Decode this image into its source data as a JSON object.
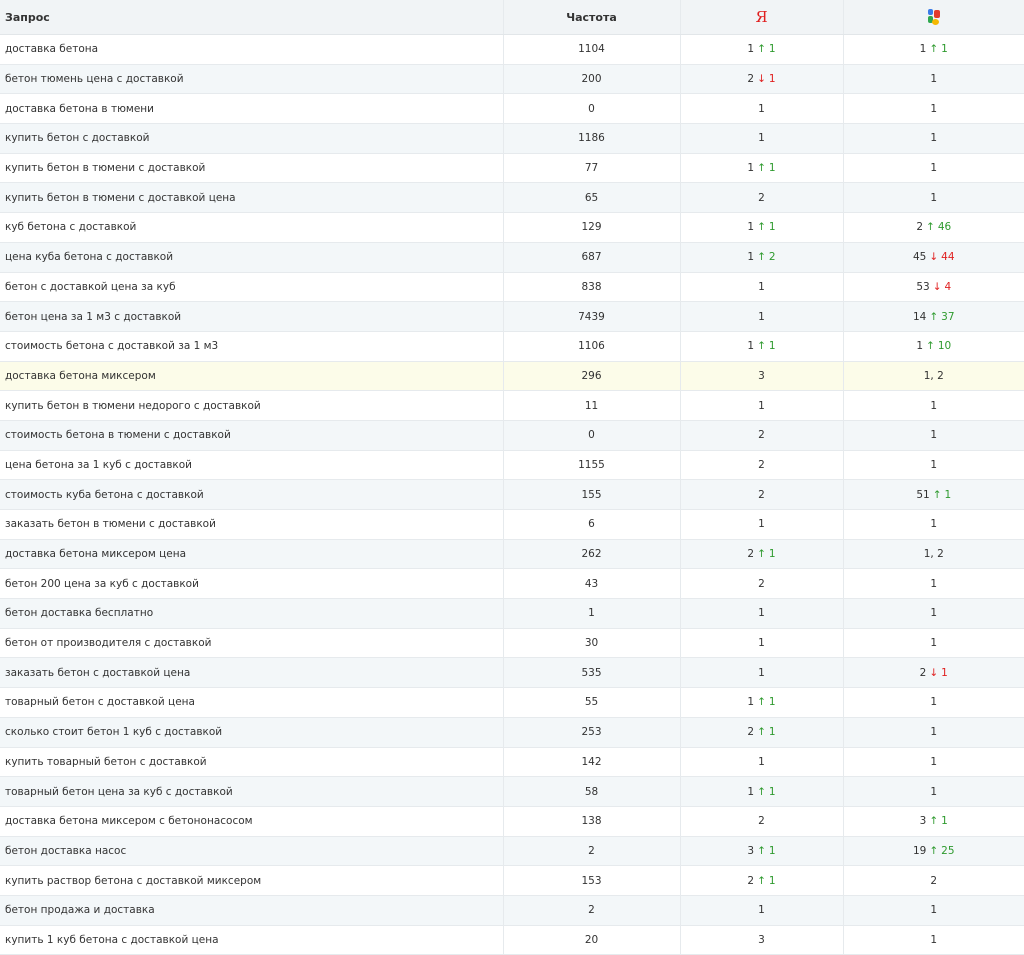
{
  "header": {
    "query": "Запрос",
    "freq": "Частота",
    "yandex": "Я",
    "google_icon": "google-logo-icon"
  },
  "colors": {
    "up": "#2e9a2e",
    "down": "#e02020",
    "highlight": "#fcfce9"
  },
  "rows": [
    {
      "q": "доставка бетона",
      "f": "1104",
      "y": {
        "p": "1",
        "dir": "up",
        "d": "1"
      },
      "g": {
        "p": "1",
        "dir": "up",
        "d": "1"
      }
    },
    {
      "q": "бетон тюмень цена с доставкой",
      "f": "200",
      "y": {
        "p": "2",
        "dir": "down",
        "d": "1"
      },
      "g": {
        "p": "1"
      }
    },
    {
      "q": "доставка бетона в тюмени",
      "f": "0",
      "y": {
        "p": "1"
      },
      "g": {
        "p": "1"
      }
    },
    {
      "q": "купить бетон с доставкой",
      "f": "1186",
      "y": {
        "p": "1"
      },
      "g": {
        "p": "1"
      }
    },
    {
      "q": "купить бетон в тюмени с доставкой",
      "f": "77",
      "y": {
        "p": "1",
        "dir": "up",
        "d": "1"
      },
      "g": {
        "p": "1"
      }
    },
    {
      "q": "купить бетон в тюмени с доставкой цена",
      "f": "65",
      "y": {
        "p": "2"
      },
      "g": {
        "p": "1"
      }
    },
    {
      "q": "куб бетона с доставкой",
      "f": "129",
      "y": {
        "p": "1",
        "dir": "up",
        "d": "1"
      },
      "g": {
        "p": "2",
        "dir": "up",
        "d": "46"
      }
    },
    {
      "q": "цена куба бетона с доставкой",
      "f": "687",
      "y": {
        "p": "1",
        "dir": "up",
        "d": "2"
      },
      "g": {
        "p": "45",
        "dir": "down",
        "d": "44"
      }
    },
    {
      "q": "бетон с доставкой цена за куб",
      "f": "838",
      "y": {
        "p": "1"
      },
      "g": {
        "p": "53",
        "dir": "down",
        "d": "4"
      }
    },
    {
      "q": "бетон цена за 1 м3 с доставкой",
      "f": "7439",
      "y": {
        "p": "1"
      },
      "g": {
        "p": "14",
        "dir": "up",
        "d": "37"
      }
    },
    {
      "q": "стоимость бетона с доставкой за 1 м3",
      "f": "1106",
      "y": {
        "p": "1",
        "dir": "up",
        "d": "1"
      },
      "g": {
        "p": "1",
        "dir": "up",
        "d": "10"
      }
    },
    {
      "q": "доставка бетона миксером",
      "f": "296",
      "y": {
        "p": "3"
      },
      "g": {
        "p": "1, 2"
      },
      "highlight": true
    },
    {
      "q": "купить бетон в тюмени недорого с доставкой",
      "f": "11",
      "y": {
        "p": "1"
      },
      "g": {
        "p": "1"
      }
    },
    {
      "q": "стоимость бетона в тюмени с доставкой",
      "f": "0",
      "y": {
        "p": "2"
      },
      "g": {
        "p": "1"
      }
    },
    {
      "q": "цена бетона за 1 куб с доставкой",
      "f": "1155",
      "y": {
        "p": "2"
      },
      "g": {
        "p": "1"
      }
    },
    {
      "q": "стоимость куба бетона с доставкой",
      "f": "155",
      "y": {
        "p": "2"
      },
      "g": {
        "p": "51",
        "dir": "up",
        "d": "1"
      }
    },
    {
      "q": "заказать бетон в тюмени с доставкой",
      "f": "6",
      "y": {
        "p": "1"
      },
      "g": {
        "p": "1"
      }
    },
    {
      "q": "доставка бетона миксером цена",
      "f": "262",
      "y": {
        "p": "2",
        "dir": "up",
        "d": "1"
      },
      "g": {
        "p": "1, 2"
      }
    },
    {
      "q": "бетон 200 цена за куб с доставкой",
      "f": "43",
      "y": {
        "p": "2"
      },
      "g": {
        "p": "1"
      }
    },
    {
      "q": "бетон доставка бесплатно",
      "f": "1",
      "y": {
        "p": "1"
      },
      "g": {
        "p": "1"
      }
    },
    {
      "q": "бетон от производителя с доставкой",
      "f": "30",
      "y": {
        "p": "1"
      },
      "g": {
        "p": "1"
      }
    },
    {
      "q": "заказать бетон с доставкой цена",
      "f": "535",
      "y": {
        "p": "1"
      },
      "g": {
        "p": "2",
        "dir": "down",
        "d": "1"
      }
    },
    {
      "q": "товарный бетон с доставкой цена",
      "f": "55",
      "y": {
        "p": "1",
        "dir": "up",
        "d": "1"
      },
      "g": {
        "p": "1"
      }
    },
    {
      "q": "сколько стоит бетон 1 куб с доставкой",
      "f": "253",
      "y": {
        "p": "2",
        "dir": "up",
        "d": "1"
      },
      "g": {
        "p": "1"
      }
    },
    {
      "q": "купить товарный бетон с доставкой",
      "f": "142",
      "y": {
        "p": "1"
      },
      "g": {
        "p": "1"
      }
    },
    {
      "q": "товарный бетон цена за куб с доставкой",
      "f": "58",
      "y": {
        "p": "1",
        "dir": "up",
        "d": "1"
      },
      "g": {
        "p": "1"
      }
    },
    {
      "q": "доставка бетона миксером с бетононасосом",
      "f": "138",
      "y": {
        "p": "2"
      },
      "g": {
        "p": "3",
        "dir": "up",
        "d": "1"
      }
    },
    {
      "q": "бетон доставка насос",
      "f": "2",
      "y": {
        "p": "3",
        "dir": "up",
        "d": "1"
      },
      "g": {
        "p": "19",
        "dir": "up",
        "d": "25"
      }
    },
    {
      "q": "купить раствор бетона с доставкой миксером",
      "f": "153",
      "y": {
        "p": "2",
        "dir": "up",
        "d": "1"
      },
      "g": {
        "p": "2"
      }
    },
    {
      "q": "бетон продажа и доставка",
      "f": "2",
      "y": {
        "p": "1"
      },
      "g": {
        "p": "1"
      }
    },
    {
      "q": "купить 1 куб бетона с доставкой цена",
      "f": "20",
      "y": {
        "p": "3"
      },
      "g": {
        "p": "1"
      }
    }
  ]
}
